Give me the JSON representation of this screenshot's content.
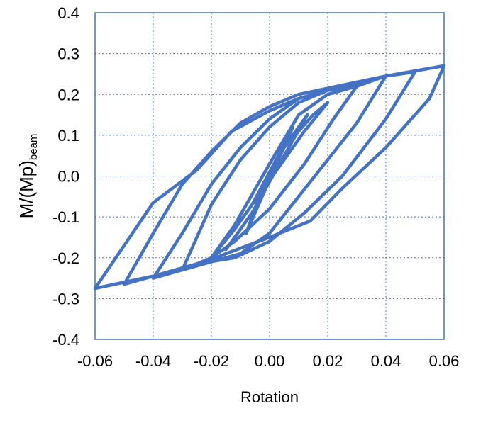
{
  "chart_data": {
    "type": "line",
    "title": "",
    "xlabel": "Rotation",
    "ylabel_main": "M/(Mp)",
    "ylabel_sub": "beam",
    "xlim": [
      -0.06,
      0.06
    ],
    "ylim": [
      -0.4,
      0.4
    ],
    "xticks": [
      -0.06,
      -0.04,
      -0.02,
      0.0,
      0.02,
      0.04,
      0.06
    ],
    "xtick_labels": [
      "-0.06",
      "-0.04",
      "-0.02",
      "0.00",
      "0.02",
      "0.04",
      "0.06"
    ],
    "yticks": [
      0.4,
      0.3,
      0.2,
      0.1,
      0.0,
      -0.1,
      -0.2,
      -0.3,
      -0.4
    ],
    "ytick_labels": [
      "0.4",
      "0.3",
      "0.2",
      "0.1",
      "0.0",
      "-0.1",
      "-0.2",
      "-0.3",
      "-0.4"
    ],
    "grid": true,
    "grid_style": "dotted",
    "line_color": "#4472C4",
    "series": [
      {
        "x": [
          0.0,
          0.003,
          0.006,
          -0.003,
          -0.006,
          0.0,
          0.005,
          0.008,
          0.003,
          -0.005,
          -0.008,
          -0.003,
          0.004,
          0.01,
          0.013,
          0.005,
          -0.006,
          -0.012,
          -0.015,
          -0.005,
          0.005,
          0.015,
          0.02,
          0.012,
          0.0,
          -0.012,
          -0.02,
          -0.012,
          0.0,
          0.01,
          0.02,
          0.03,
          0.022,
          0.012,
          0.0,
          -0.012,
          -0.02,
          -0.03,
          -0.02,
          -0.01,
          0.0,
          0.01,
          0.02,
          0.03,
          0.04,
          0.03,
          0.02,
          0.01,
          0.0,
          -0.01,
          -0.02,
          -0.03,
          -0.04,
          -0.03,
          -0.02,
          -0.01,
          0.0,
          0.01,
          0.02,
          0.03,
          0.04,
          0.05,
          0.04,
          0.025,
          0.012,
          0.0,
          -0.012,
          -0.025,
          -0.04,
          -0.05,
          -0.04,
          -0.03,
          -0.02,
          -0.01,
          0.0,
          0.01,
          0.02,
          0.03,
          0.04,
          0.06,
          0.055,
          0.04,
          0.025,
          0.014,
          0.0,
          -0.015,
          -0.025,
          -0.04,
          -0.06,
          -0.04,
          -0.025,
          -0.013,
          0.0,
          0.01,
          0.02,
          0.03,
          0.04,
          0.06
        ],
        "y": [
          0.0,
          0.05,
          0.09,
          -0.03,
          -0.07,
          -0.01,
          0.08,
          0.12,
          0.04,
          -0.09,
          -0.14,
          -0.04,
          0.06,
          0.12,
          0.15,
          0.05,
          -0.09,
          -0.15,
          -0.18,
          -0.08,
          0.07,
          0.15,
          0.18,
          0.11,
          -0.01,
          -0.13,
          -0.2,
          -0.12,
          0.03,
          0.15,
          0.2,
          0.22,
          0.14,
          0.03,
          -0.08,
          -0.16,
          -0.2,
          -0.23,
          -0.07,
          0.04,
          0.12,
          0.18,
          0.21,
          0.22,
          0.245,
          0.13,
          0.04,
          -0.05,
          -0.14,
          -0.19,
          -0.21,
          -0.23,
          -0.25,
          -0.14,
          -0.02,
          0.07,
          0.14,
          0.19,
          0.21,
          0.225,
          0.245,
          0.255,
          0.14,
          0.0,
          -0.09,
          -0.16,
          -0.2,
          -0.215,
          -0.245,
          -0.265,
          -0.14,
          -0.02,
          0.06,
          0.13,
          0.17,
          0.2,
          0.215,
          0.23,
          0.245,
          0.27,
          0.19,
          0.07,
          -0.03,
          -0.11,
          -0.15,
          -0.19,
          -0.22,
          -0.245,
          -0.275,
          -0.065,
          0.015,
          0.11,
          0.16,
          0.19,
          0.21,
          0.225,
          0.245,
          0.27
        ]
      }
    ]
  }
}
